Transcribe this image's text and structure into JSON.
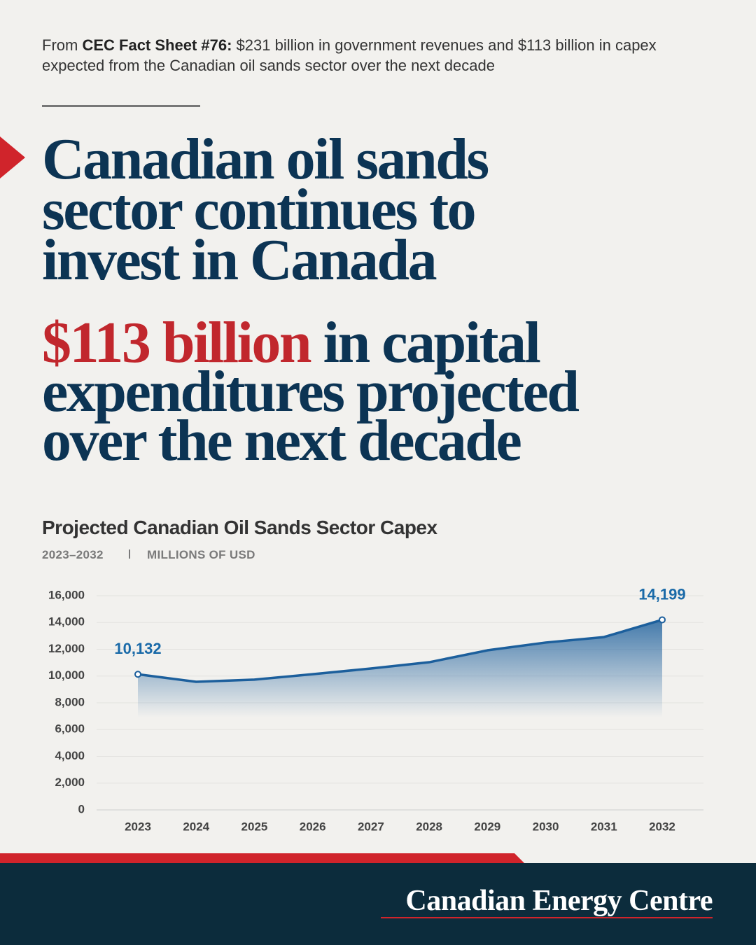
{
  "intro": {
    "prefix": "From",
    "source": "CEC Fact Sheet #76:",
    "text": "$231 billion in government revenues and $113 billion in capex expected from the Canadian oil sands sector over the next decade"
  },
  "headline": [
    "Canadian oil sands",
    "sector continues to",
    "invest in Canada"
  ],
  "subheadline": {
    "highlight": "$113 billion",
    "lines": [
      "in capital",
      "expenditures projected",
      "over the next decade"
    ]
  },
  "chart_data": {
    "type": "area",
    "title": "Projected Canadian Oil Sands Sector Capex",
    "subtitle": "2023–2032",
    "unit": "MILLIONS OF USD",
    "categories": [
      "2023",
      "2024",
      "2025",
      "2026",
      "2027",
      "2028",
      "2029",
      "2030",
      "2031",
      "2032"
    ],
    "values": [
      10132,
      9570,
      9730,
      10140,
      10560,
      11030,
      11920,
      12500,
      12910,
      14199
    ],
    "value_labels": [
      "10,132",
      null,
      null,
      null,
      null,
      null,
      null,
      null,
      null,
      "14,199"
    ],
    "color": "#1c5f9c",
    "ylim": [
      0,
      16000
    ],
    "yticks": [
      0,
      {
        "value": 2000,
        "label": "2,000"
      },
      {
        "value": 4000,
        "label": "4,000"
      },
      {
        "value": 6000,
        "label": "6,000"
      },
      {
        "value": 8000,
        "label": "8,000"
      },
      {
        "value": 10000,
        "label": "10,000"
      },
      {
        "value": 12000,
        "label": "12,000"
      },
      {
        "value": 14000,
        "label": "14,000"
      },
      {
        "value": 16000,
        "label": "16,000"
      }
    ],
    "grid": true
  },
  "footer": {
    "brand": "Canadian Energy Centre"
  }
}
